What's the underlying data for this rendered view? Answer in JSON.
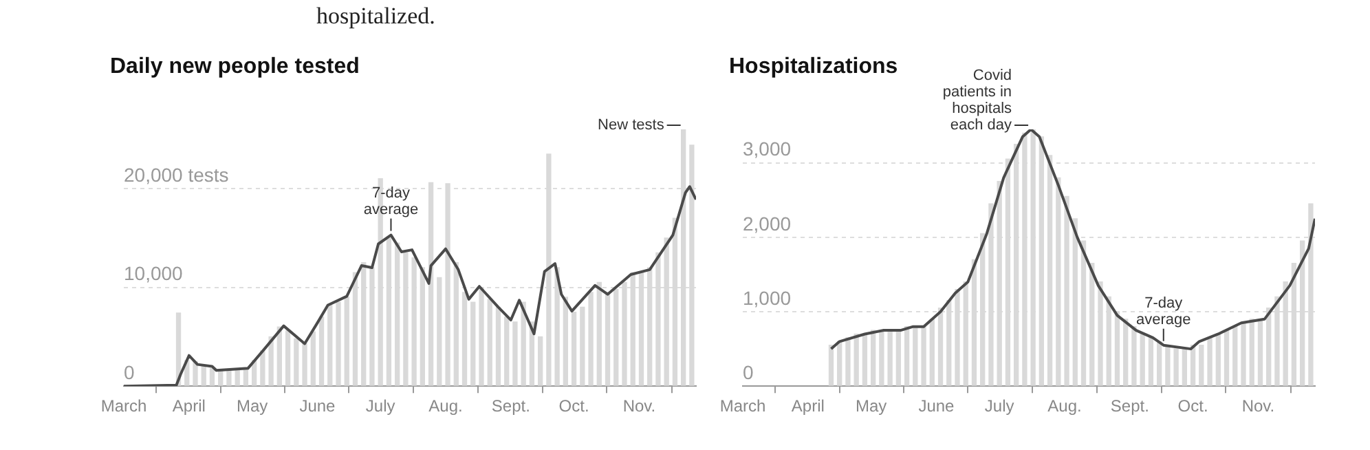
{
  "chart_data": [
    {
      "type": "bar",
      "title": "Daily new people tested",
      "annotations": [
        "hospitalized.",
        {
          "text": "7-day average",
          "x": "--07-06",
          "y": 15300
        },
        {
          "text": "New tests",
          "x": "--11-22",
          "y": 26000
        }
      ],
      "series": [
        {
          "color": "#d9d9d9",
          "x": [
            "--03-27",
            "--03-31",
            "--04-04",
            "--04-08",
            "--04-12",
            "--04-16",
            "--04-20",
            "--04-24",
            "--04-28",
            "--05-02",
            "--05-06",
            "--05-10",
            "--05-14",
            "--05-18",
            "--05-22",
            "--05-26",
            "--05-30",
            "--06-03",
            "--06-07",
            "--06-11",
            "--06-15",
            "--06-19",
            "--06-23",
            "--06-27",
            "--07-01",
            "--07-05",
            "--07-09",
            "--07-13",
            "--07-17",
            "--07-21",
            "--07-25",
            "--07-29",
            "--08-02",
            "--08-06",
            "--08-10",
            "--08-14",
            "--08-18",
            "--08-22",
            "--08-26",
            "--08-30",
            "--09-03",
            "--09-07",
            "--09-11",
            "--09-15",
            "--09-19",
            "--09-23",
            "--09-27",
            "--10-01",
            "--10-05",
            "--10-09",
            "--10-13",
            "--10-17",
            "--10-21",
            "--10-25",
            "--10-29",
            "--11-02",
            "--11-06",
            "--11-10",
            "--11-14",
            "--11-18",
            "--11-22",
            "--11-26"
          ],
          "values": [
            7400,
            2600,
            2500,
            2000,
            1800,
            1500,
            1600,
            1600,
            1700,
            2600,
            3600,
            5000,
            6000,
            5600,
            4800,
            4300,
            5500,
            7000,
            8200,
            8500,
            9000,
            11500,
            12500,
            12000,
            21000,
            15000,
            14500,
            13500,
            13000,
            12000,
            20600,
            11000,
            20500,
            12500,
            9500,
            8500,
            10000,
            8800,
            8000,
            7000,
            6500,
            8500,
            6500,
            5000,
            23500,
            12000,
            9000,
            7500,
            8000,
            9500,
            10500,
            9500,
            9800,
            10500,
            11500,
            11500,
            12000,
            13500,
            15000,
            17000,
            26000,
            24400
          ]
        },
        {
          "type": "line",
          "color": "#4a4a4a",
          "x": [
            "--03-01",
            "--03-26",
            "--03-28",
            "--04-01",
            "--04-05",
            "--04-12",
            "--04-14",
            "--04-29",
            "--05-07",
            "--05-16",
            "--05-26",
            "--06-01",
            "--06-06",
            "--06-15",
            "--06-22",
            "--06-27",
            "--06-30",
            "--07-06",
            "--07-11",
            "--07-16",
            "--07-24",
            "--07-25",
            "--08-01",
            "--08-07",
            "--08-12",
            "--08-17",
            "--08-26",
            "--09-01",
            "--09-05",
            "--09-12",
            "--09-17",
            "--09-22",
            "--09-25",
            "--09-30",
            "--10-11",
            "--10-17",
            "--10-28",
            "--11-06",
            "--11-17",
            "--11-23",
            "--11-25",
            "--11-28"
          ],
          "values": [
            0,
            100,
            1200,
            3100,
            2200,
            2000,
            1600,
            1800,
            3800,
            6100,
            4300,
            6400,
            8200,
            9100,
            12200,
            12000,
            14400,
            15300,
            13600,
            13800,
            10400,
            12200,
            13900,
            11800,
            8800,
            10100,
            8000,
            6700,
            8700,
            5300,
            11600,
            12400,
            9300,
            7600,
            10200,
            9300,
            11300,
            11800,
            15300,
            19600,
            20200,
            18900
          ]
        }
      ],
      "xlim": [
        "--03-01",
        "--11-28"
      ],
      "xticks": [
        {
          "value": "--03-01",
          "label": "March"
        },
        {
          "value": "--04-01",
          "label": "April"
        },
        {
          "value": "--05-01",
          "label": "May"
        },
        {
          "value": "--06-01",
          "label": "June"
        },
        {
          "value": "--07-01",
          "label": "July"
        },
        {
          "value": "--08-01",
          "label": "Aug."
        },
        {
          "value": "--09-01",
          "label": "Sept."
        },
        {
          "value": "--10-01",
          "label": "Oct."
        },
        {
          "value": "--11-01",
          "label": "Nov."
        }
      ],
      "ylim": [
        0,
        26000
      ],
      "yticks": [
        0,
        {
          "value": 10000,
          "label": "10,000"
        },
        {
          "value": 20000,
          "label": "20,000 tests"
        }
      ],
      "grid": "y",
      "legend": false,
      "marker": "none"
    },
    {
      "type": "bar",
      "title": "Hospitalizations",
      "annotations": [
        {
          "text": "Covid patients in hospitals each day",
          "x": "--07-16",
          "y": 3450
        },
        {
          "text": "7-day average",
          "x": "--09-17",
          "y": 550
        }
      ],
      "series": [
        {
          "color": "#d9d9d9",
          "x": [
            "--04-12",
            "--04-16",
            "--04-20",
            "--04-24",
            "--04-28",
            "--05-02",
            "--05-06",
            "--05-10",
            "--05-14",
            "--05-18",
            "--05-22",
            "--05-26",
            "--05-30",
            "--06-03",
            "--06-07",
            "--06-11",
            "--06-15",
            "--06-19",
            "--06-23",
            "--06-27",
            "--07-01",
            "--07-05",
            "--07-09",
            "--07-13",
            "--07-17",
            "--07-21",
            "--07-25",
            "--07-29",
            "--08-02",
            "--08-06",
            "--08-10",
            "--08-14",
            "--08-18",
            "--08-22",
            "--08-26",
            "--08-30",
            "--09-03",
            "--09-07",
            "--09-11",
            "--09-15",
            "--09-19",
            "--09-23",
            "--09-27",
            "--10-01",
            "--10-05",
            "--10-09",
            "--10-13",
            "--10-17",
            "--10-21",
            "--10-25",
            "--10-29",
            "--11-02",
            "--11-06",
            "--11-10",
            "--11-14",
            "--11-18",
            "--11-22",
            "--11-26"
          ],
          "values": [
            550,
            600,
            650,
            700,
            700,
            750,
            750,
            750,
            750,
            800,
            800,
            800,
            900,
            1050,
            1150,
            1300,
            1400,
            1700,
            2050,
            2450,
            2750,
            3050,
            3250,
            3400,
            3450,
            3350,
            3100,
            2800,
            2550,
            2250,
            1950,
            1650,
            1400,
            1200,
            1000,
            900,
            800,
            700,
            650,
            600,
            550,
            500,
            500,
            550,
            550,
            650,
            700,
            750,
            800,
            850,
            900,
            900,
            1050,
            1200,
            1400,
            1650,
            1950,
            2450
          ]
        },
        {
          "type": "line",
          "color": "#4a4a4a",
          "x": [
            "--04-12",
            "--04-16",
            "--04-28",
            "--05-07",
            "--05-15",
            "--05-21",
            "--05-26",
            "--06-03",
            "--06-10",
            "--06-16",
            "--06-25",
            "--07-03",
            "--07-12",
            "--07-16",
            "--07-20",
            "--07-29",
            "--08-07",
            "--08-17",
            "--08-26",
            "--09-04",
            "--09-12",
            "--09-17",
            "--09-30",
            "--10-04",
            "--10-13",
            "--10-24",
            "--11-04",
            "--11-16",
            "--11-25",
            "--11-28"
          ],
          "values": [
            500,
            600,
            700,
            750,
            750,
            800,
            800,
            1000,
            1250,
            1400,
            2050,
            2800,
            3350,
            3450,
            3350,
            2700,
            2000,
            1350,
            950,
            750,
            650,
            550,
            500,
            600,
            700,
            850,
            900,
            1350,
            1850,
            2250
          ]
        }
      ],
      "xlim": [
        "--03-01",
        "--11-28"
      ],
      "xticks": [
        {
          "value": "--03-01",
          "label": "March"
        },
        {
          "value": "--04-01",
          "label": "April"
        },
        {
          "value": "--05-01",
          "label": "May"
        },
        {
          "value": "--06-01",
          "label": "June"
        },
        {
          "value": "--07-01",
          "label": "July"
        },
        {
          "value": "--08-01",
          "label": "Aug."
        },
        {
          "value": "--09-01",
          "label": "Sept."
        },
        {
          "value": "--10-01",
          "label": "Oct."
        },
        {
          "value": "--11-01",
          "label": "Nov."
        }
      ],
      "ylim": [
        0,
        3450
      ],
      "yticks": [
        0,
        {
          "value": 1000,
          "label": "1,000"
        },
        {
          "value": 2000,
          "label": "2,000"
        },
        {
          "value": 3000,
          "label": "3,000"
        }
      ],
      "grid": "y",
      "legend": false,
      "marker": "none"
    }
  ]
}
